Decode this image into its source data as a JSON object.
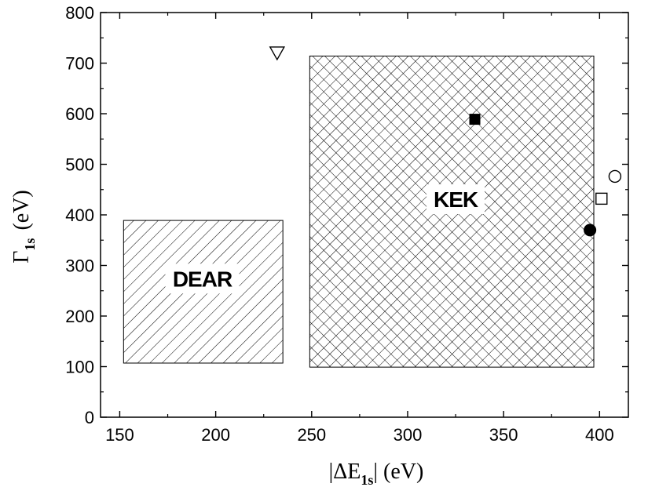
{
  "chart_data": {
    "type": "scatter",
    "xlim": [
      140,
      415
    ],
    "ylim": [
      0,
      800
    ],
    "x_ticks": [
      150,
      200,
      250,
      300,
      350,
      400
    ],
    "x_minor_ticks": [
      175,
      225,
      275,
      325,
      375
    ],
    "y_ticks": [
      0,
      100,
      200,
      300,
      400,
      500,
      600,
      700,
      800
    ],
    "y_minor_ticks": [
      50,
      150,
      250,
      350,
      450,
      550,
      650,
      750
    ],
    "xlabel": {
      "pre": "|ΔE",
      "sub": "1s",
      "post": "| (eV)"
    },
    "ylabel": {
      "pre": "Γ",
      "sub": "1s",
      "post": "(eV)"
    },
    "grid": false,
    "regions": [
      {
        "label": "DEAR",
        "pattern": "diagonal-hatch",
        "x": [
          152,
          235
        ],
        "y": [
          107,
          389
        ],
        "label_at": [
          193,
          274
        ]
      },
      {
        "label": "KEK",
        "pattern": "cross-hatch",
        "x": [
          249,
          397
        ],
        "y": [
          99,
          714
        ],
        "label_at": [
          325,
          431
        ]
      }
    ],
    "points": [
      {
        "marker": "triangle-down-open",
        "x": 232,
        "y": 721
      },
      {
        "marker": "square-filled",
        "x": 335,
        "y": 589
      },
      {
        "marker": "circle-open",
        "x": 408,
        "y": 476
      },
      {
        "marker": "square-open",
        "x": 401,
        "y": 432
      },
      {
        "marker": "circle-filled",
        "x": 395,
        "y": 370
      }
    ]
  }
}
